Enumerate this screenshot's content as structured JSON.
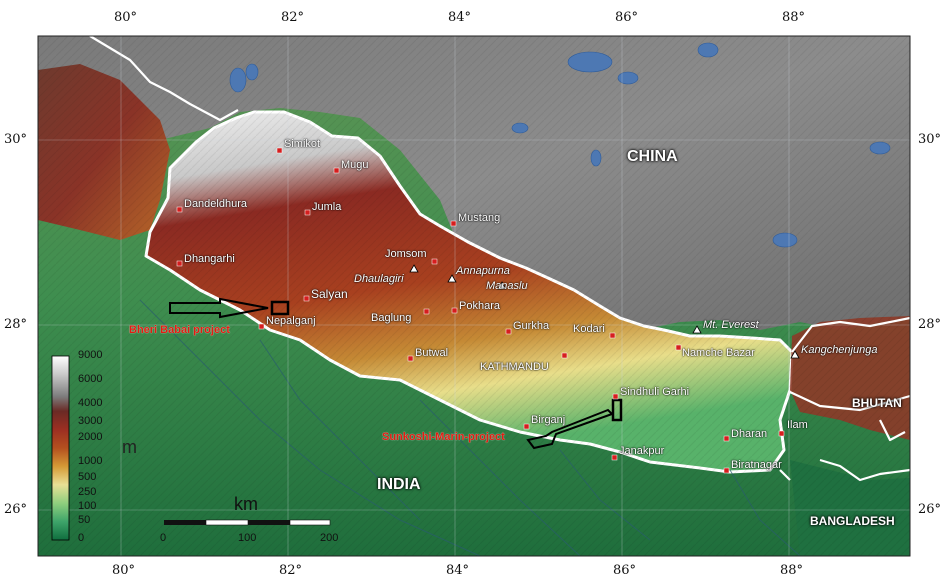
{
  "graticule": {
    "lon": [
      "80°",
      "82°",
      "84°",
      "86°",
      "88°"
    ],
    "lat": [
      "30°",
      "28°",
      "26°"
    ]
  },
  "countries": {
    "china": "CHINA",
    "india": "INDIA",
    "bhutan": "BHUTAN",
    "bangladesh": "BANGLADESH"
  },
  "cities": [
    "Simikot",
    "Mugu",
    "Jumla",
    "Dandeldhura",
    "Dhangarhi",
    "Mustang",
    "Jomsom",
    "Salyan",
    "Nepalganj",
    "Baglung",
    "Pokhara",
    "Gurkha",
    "Kodari",
    "Namche Bazar",
    "Butwal",
    "KATHMANDU",
    "Sindhuli Garhi",
    "Birganj",
    "Janakpur",
    "Dharan",
    "Ilam",
    "Biratnagar"
  ],
  "peaks": [
    "Dhaulagiri",
    "Annapurna",
    "Manaslu",
    "Mt. Everest",
    "Kangchenjunga"
  ],
  "projects": {
    "bheri": "Bheri Babai project",
    "sunkoshi": "Sunkoshi-Marin-project"
  },
  "legend": {
    "unit": "m",
    "values": [
      "9000",
      "6000",
      "4000",
      "3000",
      "2000",
      "1000",
      "500",
      "250",
      "100",
      "50",
      "0"
    ],
    "colors": [
      "#ffffff",
      "#9a9a9a",
      "#6a2a25",
      "#8b2a22",
      "#a93a24",
      "#b8661e",
      "#d9a238",
      "#e6e08e",
      "#8fcf7e",
      "#3ea46a",
      "#0f6e3e"
    ]
  },
  "scale": {
    "unit": "km",
    "ticks": [
      "0",
      "100",
      "200"
    ]
  }
}
